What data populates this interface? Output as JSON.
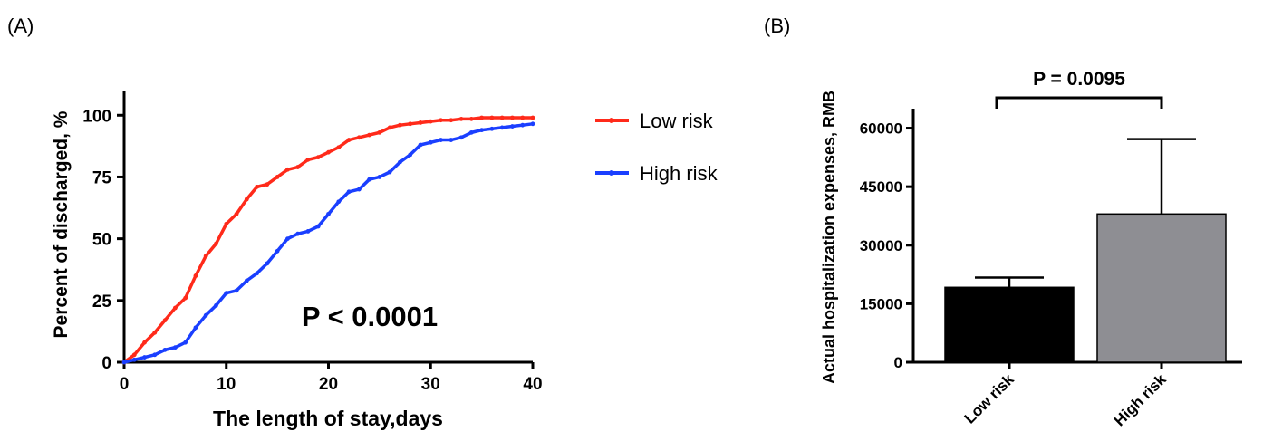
{
  "chart_data": [
    {
      "panel_label": "(A)",
      "type": "line",
      "xlabel": "The length of stay,days",
      "ylabel": "Percent of discharged, %",
      "xlim": [
        0,
        40
      ],
      "ylim": [
        0,
        110
      ],
      "xticks": [
        0,
        10,
        20,
        30,
        40
      ],
      "yticks": [
        0,
        25,
        50,
        75,
        100
      ],
      "legend_position": "right",
      "annotation": "P < 0.0001",
      "series": [
        {
          "name": "Low risk",
          "color": "#ff2a1a",
          "x": [
            0,
            1,
            2,
            3,
            4,
            5,
            6,
            7,
            8,
            9,
            10,
            11,
            12,
            13,
            14,
            15,
            16,
            17,
            18,
            19,
            20,
            21,
            22,
            23,
            24,
            25,
            26,
            27,
            28,
            29,
            30,
            31,
            32,
            33,
            34,
            35,
            36,
            37,
            38,
            39,
            40
          ],
          "y": [
            0,
            3,
            8,
            12,
            17,
            22,
            26,
            35,
            43,
            48,
            56,
            60,
            66,
            71,
            72,
            75,
            78,
            79,
            82,
            83,
            85,
            87,
            90,
            91,
            92,
            93,
            95,
            96,
            96.5,
            97,
            97.5,
            98,
            98,
            98.5,
            98.5,
            99,
            99,
            99,
            99,
            99,
            99
          ]
        },
        {
          "name": "High risk",
          "color": "#1a3fff",
          "x": [
            0,
            1,
            2,
            3,
            4,
            5,
            6,
            7,
            8,
            9,
            10,
            11,
            12,
            13,
            14,
            15,
            16,
            17,
            18,
            19,
            20,
            21,
            22,
            23,
            24,
            25,
            26,
            27,
            28,
            29,
            30,
            31,
            32,
            33,
            34,
            35,
            36,
            37,
            38,
            39,
            40
          ],
          "y": [
            0,
            1,
            2,
            3,
            5,
            6,
            8,
            14,
            19,
            23,
            28,
            29,
            33,
            36,
            40,
            45,
            50,
            52,
            53,
            55,
            60,
            65,
            69,
            70,
            74,
            75,
            77,
            81,
            84,
            88,
            89,
            90,
            90,
            91,
            93,
            94,
            94.5,
            95,
            95.5,
            96,
            96.5
          ]
        }
      ]
    },
    {
      "panel_label": "(B)",
      "type": "bar",
      "xlabel": "",
      "ylabel": "Actual hospitalization expenses, RMB",
      "ylim": [
        0,
        65000
      ],
      "yticks": [
        0,
        15000,
        30000,
        45000,
        60000
      ],
      "ytick_labels": [
        "0",
        "15000",
        "30000",
        "45000",
        "60000"
      ],
      "categories": [
        "Low risk",
        "High risk"
      ],
      "values": [
        19200,
        38000
      ],
      "error_upper": [
        21700,
        57200
      ],
      "colors": [
        "#000000",
        "#8e8e93"
      ],
      "annotation": "P = 0.0095"
    }
  ]
}
